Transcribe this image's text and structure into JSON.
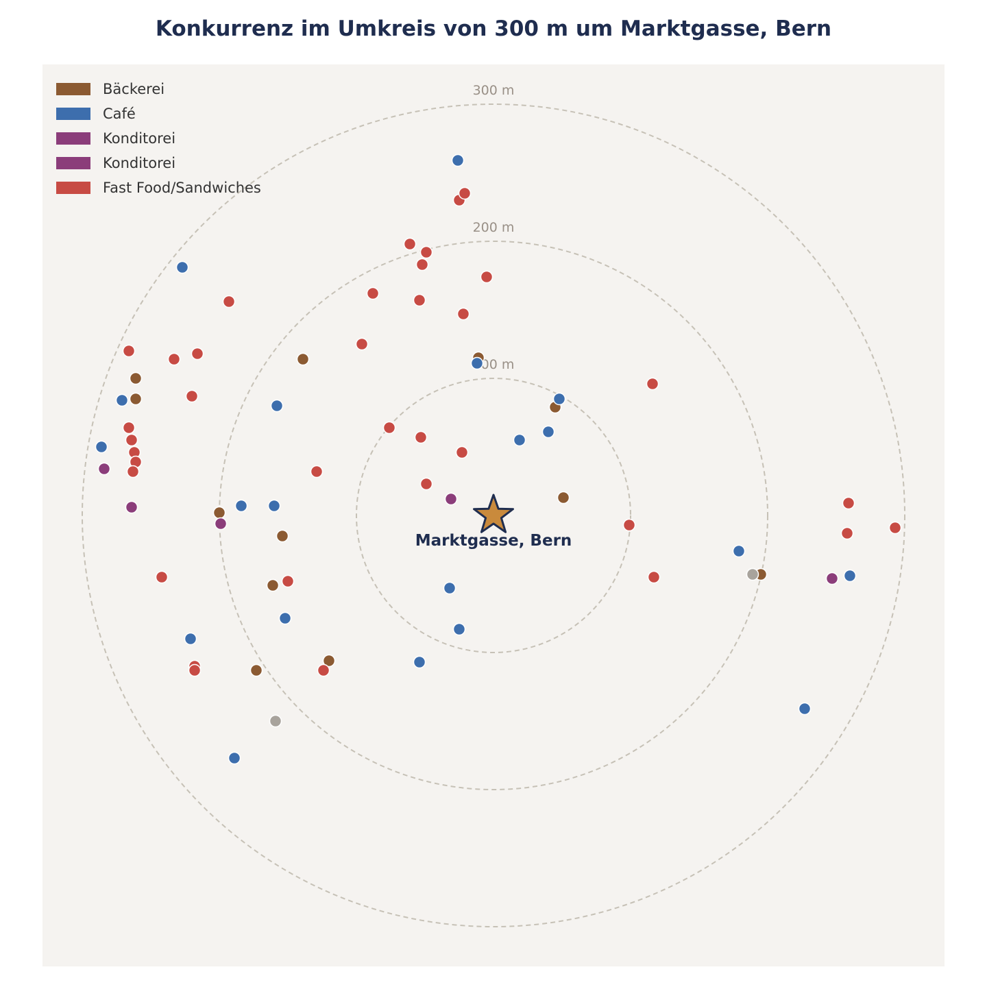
{
  "chart_data": {
    "type": "scatter",
    "title": "Konkurrenz im Umkreis von 300 m um Marktgasse, Bern",
    "center_label": "Marktgasse, Bern",
    "rings": [
      {
        "radius_m": 100,
        "label": "100 m"
      },
      {
        "radius_m": 200,
        "label": "200 m"
      },
      {
        "radius_m": 300,
        "label": "300 m"
      }
    ],
    "units": "m",
    "xlim": [
      -330,
      330
    ],
    "ylim": [
      -330,
      330
    ],
    "grid": false,
    "legend_position": "top-left",
    "colors": {
      "background": "#f5f3f0",
      "ring": "#c6c1b6",
      "ring_label": "#999087",
      "title": "#1f2d4f",
      "star_fill": "#c98a3c",
      "star_stroke": "#1f2d4f",
      "point_stroke": "#ffffff"
    },
    "series": [
      {
        "name": "Bäckerei",
        "color": "#8b5a32",
        "points": [
          [
            -11,
            115
          ],
          [
            -139,
            114
          ],
          [
            -261,
            100
          ],
          [
            -261,
            85
          ],
          [
            45,
            79
          ],
          [
            51,
            13
          ],
          [
            -200,
            2
          ],
          [
            -154,
            -15
          ],
          [
            -161,
            -51
          ],
          [
            -120,
            -106
          ],
          [
            -173,
            -113
          ],
          [
            195,
            -43
          ]
        ]
      },
      {
        "name": "Café",
        "color": "#3d6ead",
        "points": [
          [
            -26,
            259
          ],
          [
            -227,
            181
          ],
          [
            -12,
            111
          ],
          [
            -271,
            84
          ],
          [
            -158,
            80
          ],
          [
            48,
            85
          ],
          [
            40,
            61
          ],
          [
            19,
            55
          ],
          [
            -286,
            50
          ],
          [
            -184,
            7
          ],
          [
            -160,
            7
          ],
          [
            179,
            -26
          ],
          [
            -32,
            -53
          ],
          [
            -25,
            -83
          ],
          [
            -54,
            -107
          ],
          [
            -152,
            -75
          ],
          [
            -221,
            -90
          ],
          [
            260,
            -44
          ],
          [
            227,
            -141
          ],
          [
            -189,
            -177
          ]
        ]
      },
      {
        "name": "Konditorei",
        "color": "#8b3d7a",
        "points": [
          [
            -284,
            34
          ],
          [
            -264,
            6
          ],
          [
            -199,
            -6
          ],
          [
            -31,
            12
          ],
          [
            247,
            -46
          ]
        ]
      },
      {
        "name": "Konditorei",
        "color": "#8b3d7a",
        "points": []
      },
      {
        "name": "Fast Food/Sandwiches",
        "color": "#c74b44",
        "points": [
          [
            -25,
            230
          ],
          [
            -21,
            235
          ],
          [
            -61,
            198
          ],
          [
            -49,
            192
          ],
          [
            -52,
            183
          ],
          [
            -5,
            174
          ],
          [
            -193,
            156
          ],
          [
            -88,
            162
          ],
          [
            -54,
            157
          ],
          [
            -22,
            147
          ],
          [
            -96,
            125
          ],
          [
            -266,
            120
          ],
          [
            -233,
            114
          ],
          [
            -216,
            118
          ],
          [
            -220,
            87
          ],
          [
            116,
            96
          ],
          [
            -266,
            64
          ],
          [
            -264,
            55
          ],
          [
            -262,
            46
          ],
          [
            -261,
            39
          ],
          [
            -263,
            32
          ],
          [
            -76,
            64
          ],
          [
            -53,
            57
          ],
          [
            -23,
            46
          ],
          [
            -129,
            32
          ],
          [
            -49,
            23
          ],
          [
            99,
            -7
          ],
          [
            259,
            9
          ],
          [
            258,
            -13
          ],
          [
            293,
            -9
          ],
          [
            -242,
            -45
          ],
          [
            -150,
            -48
          ],
          [
            117,
            -45
          ],
          [
            -218,
            -110
          ],
          [
            -218,
            -113
          ],
          [
            -124,
            -113
          ]
        ]
      },
      {
        "name": "",
        "color": "#a8a39c",
        "points": [
          [
            189,
            -43
          ],
          [
            -159,
            -150
          ]
        ]
      }
    ]
  }
}
